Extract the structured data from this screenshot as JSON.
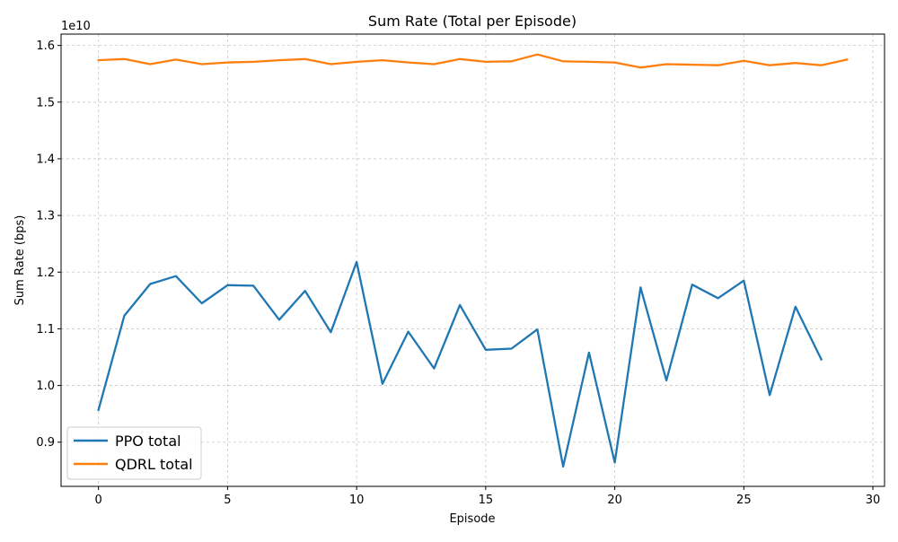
{
  "chart_data": {
    "type": "line",
    "title": "Sum Rate (Total per Episode)",
    "xlabel": "Episode",
    "ylabel": "Sum Rate (bps)",
    "offset_text": "1e10",
    "xlim": [
      -1.45,
      30.45
    ],
    "ylim": [
      0.822,
      1.62
    ],
    "ylim_units": "1e10 bps",
    "xticks": [
      0,
      5,
      10,
      15,
      20,
      25,
      30
    ],
    "xtick_labels": [
      "0",
      "5",
      "10",
      "15",
      "20",
      "25",
      "30"
    ],
    "yticks": [
      0.9,
      1.0,
      1.1,
      1.2,
      1.3,
      1.4,
      1.5,
      1.6
    ],
    "ytick_labels": [
      "0.9",
      "1.0",
      "1.1",
      "1.2",
      "1.3",
      "1.4",
      "1.5",
      "1.6"
    ],
    "grid": true,
    "legend_position": "lower-left",
    "series": [
      {
        "name": "PPO total",
        "color": "#1f77b4",
        "x": [
          0,
          1,
          2,
          3,
          4,
          5,
          6,
          7,
          8,
          9,
          10,
          11,
          12,
          13,
          14,
          15,
          16,
          17,
          18,
          19,
          20,
          21,
          22,
          23,
          24,
          25,
          26,
          27,
          28
        ],
        "values": [
          0.957,
          1.123,
          1.179,
          1.193,
          1.145,
          1.177,
          1.176,
          1.116,
          1.167,
          1.094,
          1.218,
          1.003,
          1.095,
          1.03,
          1.142,
          1.063,
          1.065,
          1.099,
          0.857,
          1.058,
          0.864,
          1.173,
          1.009,
          1.178,
          1.154,
          1.185,
          0.983,
          1.139,
          1.046
        ]
      },
      {
        "name": "QDRL total",
        "color": "#ff7f0e",
        "x": [
          0,
          1,
          2,
          3,
          4,
          5,
          6,
          7,
          8,
          9,
          10,
          11,
          12,
          13,
          14,
          15,
          16,
          17,
          18,
          19,
          20,
          21,
          22,
          23,
          24,
          25,
          26,
          27,
          28,
          29
        ],
        "values": [
          1.574,
          1.576,
          1.567,
          1.575,
          1.567,
          1.57,
          1.571,
          1.574,
          1.576,
          1.567,
          1.571,
          1.574,
          1.57,
          1.567,
          1.576,
          1.571,
          1.572,
          1.584,
          1.572,
          1.571,
          1.57,
          1.561,
          1.567,
          1.566,
          1.565,
          1.573,
          1.565,
          1.569,
          1.565,
          1.575
        ]
      }
    ]
  }
}
